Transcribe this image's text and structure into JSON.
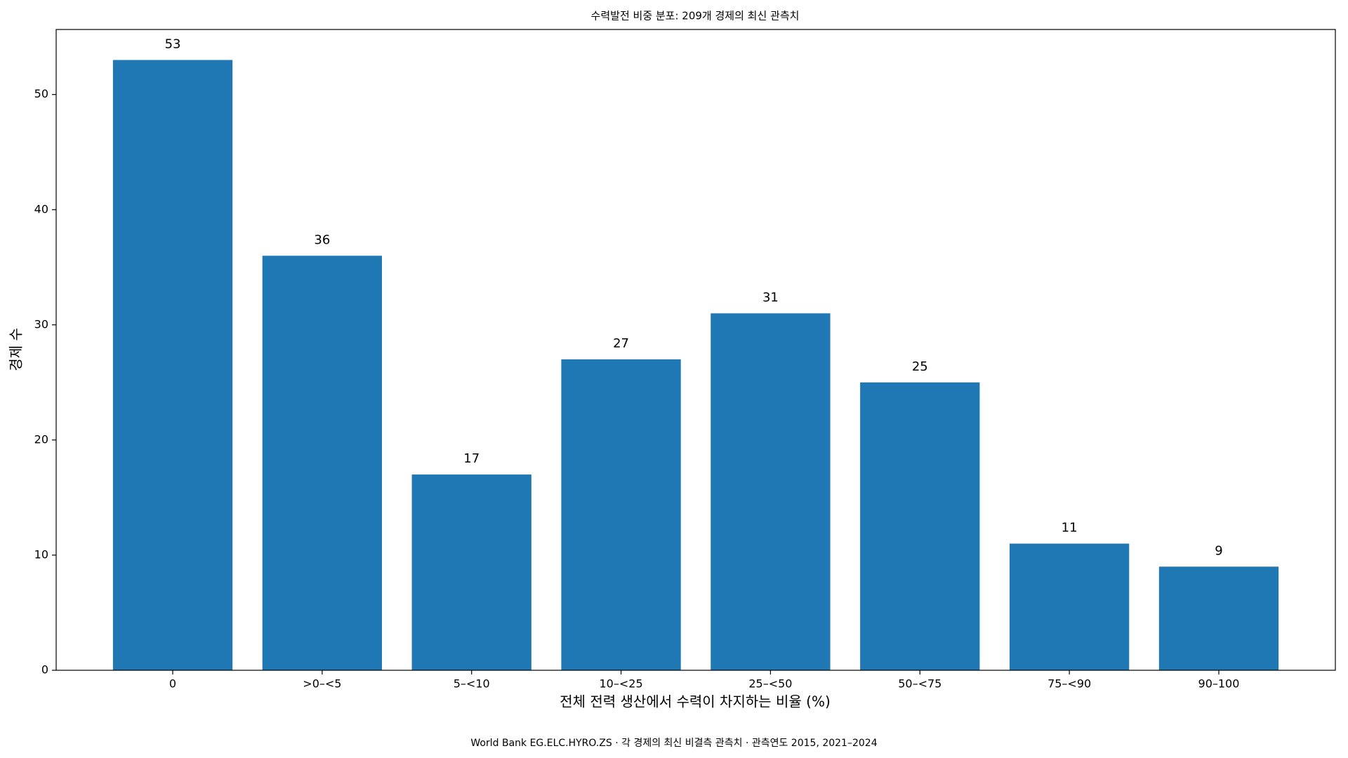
{
  "chart_data": {
    "type": "bar",
    "title": "수력발전 비중 분포: 209개 경제의 최신 관측치",
    "x_label": "전체 전력 생산에서 수력이 차지하는 비율 (%)",
    "y_label": "경제 수",
    "caption": "World Bank EG.ELC.HYRO.ZS · 각 경제의 최신 비결측 관측치 · 관측연도 2015, 2021–2024",
    "categories": [
      "0",
      ">0–<5",
      "5–<10",
      "10–<25",
      "25–<50",
      "50–<75",
      "75–<90",
      "90–100"
    ],
    "values": [
      53,
      36,
      17,
      27,
      31,
      25,
      11,
      9
    ],
    "color": "#1f77b4",
    "ylim": [
      0,
      55.65
    ],
    "yticks": [
      0,
      10,
      20,
      30,
      40,
      50
    ]
  }
}
